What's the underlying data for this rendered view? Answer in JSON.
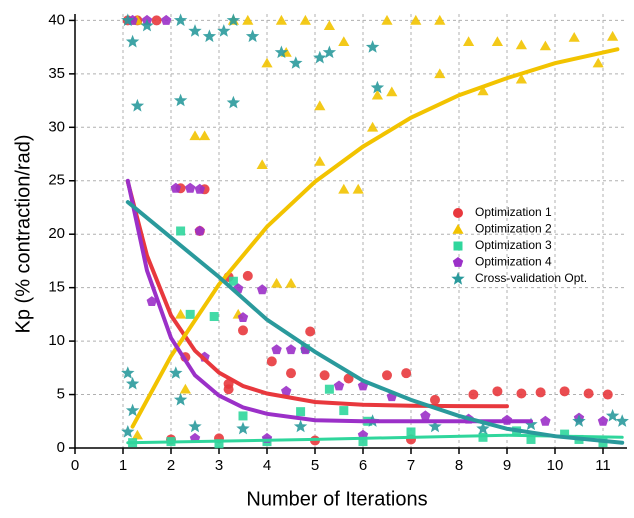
{
  "chart_data": {
    "type": "scatter",
    "x_label": "Number of Iterations",
    "y_label": "Kp (% contraction/rad)",
    "xlim": [
      0,
      11.5
    ],
    "ylim": [
      0,
      40.6
    ],
    "xticks": [
      0,
      1,
      2,
      3,
      4,
      5,
      6,
      7,
      8,
      9,
      10,
      11
    ],
    "yticks": [
      0,
      5,
      10,
      15,
      20,
      25,
      30,
      35,
      40
    ],
    "grid": true,
    "legend": "right",
    "series": [
      {
        "name": "Optimization 1",
        "color": "#e8383d",
        "marker": "circle",
        "x": [
          1.1,
          1.3,
          1.7,
          2.2,
          2.7,
          2.6,
          2.3,
          3.2,
          3.6,
          3.5,
          3.2,
          3.2,
          4.1,
          4.5,
          4.9,
          5.2,
          5.7,
          6.5,
          6.9,
          7.5,
          8.3,
          8.8,
          9.3,
          9.7,
          10.2,
          10.7,
          11.1,
          2.0,
          3.0,
          5.0,
          7.0
        ],
        "values": [
          40,
          40,
          40,
          24.3,
          24.2,
          20.3,
          8.5,
          16,
          16.1,
          11,
          5.5,
          6,
          8.1,
          7,
          10.9,
          6.8,
          6.5,
          6.8,
          7,
          4.5,
          5,
          5.3,
          5.1,
          5.2,
          5.3,
          5.1,
          5.0,
          0.8,
          0.9,
          0.7,
          0.8
        ],
        "fit": {
          "x": [
            1.1,
            1.5,
            2,
            2.5,
            3,
            3.5,
            4,
            5,
            6,
            7,
            8,
            9
          ],
          "y": [
            24.9,
            18,
            12.4,
            9.1,
            7.05,
            5.8,
            5.1,
            4.3,
            4.05,
            3.96,
            3.92,
            3.9
          ],
          "width": 4
        }
      },
      {
        "name": "Optimization 2",
        "color": "#f2c300",
        "marker": "triangle",
        "x": [
          1.3,
          3.3,
          3.6,
          4.3,
          4.8,
          5.3,
          6.5,
          7.1,
          7.6,
          4.0,
          4.4,
          5.1,
          5.6,
          6.3,
          6.6,
          7.6,
          8.2,
          8.8,
          9.3,
          9.8,
          10.4,
          10.9,
          11.2,
          6.2,
          5.6,
          5.9,
          4.2,
          4.5,
          3.9,
          5.1,
          2.5,
          2.7,
          2.3,
          1.3,
          2.2,
          3.4,
          9.3,
          8.5
        ],
        "values": [
          40,
          40,
          40,
          40,
          40,
          39.5,
          40,
          40,
          40,
          36,
          37,
          32,
          38,
          33,
          33.3,
          35,
          38,
          38,
          37.7,
          37.6,
          38.4,
          36,
          38.5,
          30,
          24.2,
          24.2,
          15.4,
          15.4,
          26.5,
          26.8,
          29.2,
          29.2,
          5.5,
          1.2,
          12.5,
          12.5,
          34.5,
          33.4
        ],
        "fit": {
          "x": [
            1.2,
            2,
            3,
            4,
            5,
            6,
            7,
            8,
            9,
            10,
            11.3
          ],
          "y": [
            2,
            8.6,
            15.3,
            20.7,
            24.9,
            28.2,
            30.9,
            33,
            34.6,
            36,
            37.3
          ],
          "width": 4
        }
      },
      {
        "name": "Optimization 3",
        "color": "#2fd69c",
        "marker": "square",
        "x": [
          2.2,
          2.4,
          2.9,
          3.3,
          4.8,
          5.3,
          3.5,
          4.7,
          5.6,
          6.1,
          7.0,
          8.5,
          9.5,
          10.5,
          11.0,
          1.2,
          2.0,
          3.0,
          4.0,
          6.0,
          9.2,
          10.2
        ],
        "values": [
          20.3,
          12.5,
          12.3,
          15.6,
          9.3,
          5.5,
          3,
          3.4,
          3.5,
          2.5,
          1.5,
          1,
          0.8,
          0.8,
          0.5,
          0.5,
          0.6,
          0.4,
          0.6,
          0.6,
          1.6,
          1.3
        ],
        "fit": {
          "x": [
            1.1,
            5,
            9,
            11.4
          ],
          "y": [
            0.5,
            0.8,
            1.2,
            1.0
          ],
          "width": 3
        }
      },
      {
        "name": "Optimization 4",
        "color": "#9b30c8",
        "marker": "pentagon",
        "x": [
          1.2,
          1.5,
          1.9,
          1.6,
          2.1,
          2.4,
          2.6,
          2.6,
          2.7,
          3.4,
          3.9,
          3.5,
          4.2,
          4.5,
          4.8,
          4.4,
          5.5,
          6.0,
          6.6,
          7.3,
          8.2,
          9.0,
          9.8,
          10.5,
          11.0,
          2.5,
          4.0,
          6.0
        ],
        "values": [
          40,
          40,
          40,
          13.7,
          24.3,
          24.3,
          24.2,
          20.3,
          8.5,
          14.9,
          14.8,
          12.2,
          9.2,
          9.2,
          9.2,
          5.3,
          5.8,
          5.8,
          4.8,
          3,
          2.7,
          2.6,
          2.5,
          2.8,
          2.5,
          0.9,
          0.9,
          1.2
        ],
        "fit": {
          "x": [
            1.1,
            1.5,
            2,
            2.5,
            3,
            3.5,
            4,
            5,
            6,
            7,
            8,
            9,
            9.5
          ],
          "y": [
            25,
            16.6,
            10.3,
            6.8,
            4.9,
            3.8,
            3.2,
            2.6,
            2.5,
            2.5,
            2.5,
            2.5,
            2.5
          ],
          "width": 4
        }
      },
      {
        "name": "Cross-validation Opt.",
        "color": "#2a9a9c",
        "marker": "star",
        "x": [
          1.1,
          1.2,
          1.5,
          2.2,
          2.5,
          2.8,
          3.1,
          3.3,
          3.7,
          4.3,
          4.6,
          5.1,
          5.3,
          6.2,
          1.3,
          2.2,
          3.3,
          6.3,
          1.1,
          1.2,
          1.2,
          2.1,
          2.2,
          1.1,
          2.5,
          3.5,
          4.7,
          6.2,
          7.5,
          8.5,
          9.5,
          10.5,
          11.2,
          11.4
        ],
        "values": [
          40,
          38,
          39.5,
          40,
          39,
          38.5,
          39,
          40,
          38.5,
          37,
          36,
          36.5,
          37,
          37.5,
          32,
          32.5,
          32.3,
          33.7,
          7,
          6,
          3.5,
          7,
          4.5,
          1.5,
          2,
          1.8,
          2,
          2.5,
          2,
          1.8,
          2.2,
          2.5,
          3,
          2.5
        ],
        "fit": {
          "x": [
            1.1,
            3,
            4,
            5,
            6,
            7,
            8,
            9,
            10,
            11.4
          ],
          "y": [
            23,
            16,
            12,
            9,
            6.3,
            4.5,
            3,
            1.8,
            1.1,
            0.5
          ],
          "width": 4
        }
      }
    ]
  }
}
